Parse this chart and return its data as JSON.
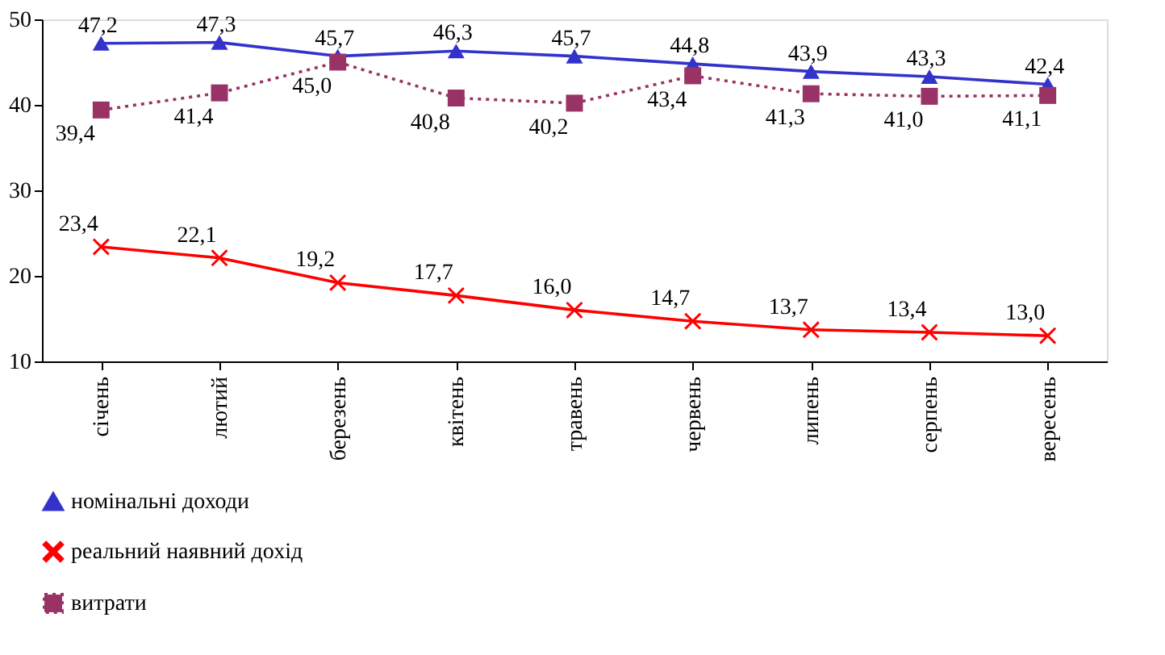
{
  "chart_data": {
    "type": "line",
    "categories": [
      "січень",
      "лютий",
      "березень",
      "квітень",
      "травень",
      "червень",
      "липень",
      "серпень",
      "вересень"
    ],
    "ylim": [
      10,
      50
    ],
    "yticks": [
      10,
      20,
      30,
      40,
      50
    ],
    "grid": false,
    "legend": "bottom",
    "series": [
      {
        "name": "номінальні доходи",
        "color": "#3333cc",
        "marker": "triangle",
        "line_style": "solid",
        "values": [
          47.2,
          47.3,
          45.7,
          46.3,
          45.7,
          44.8,
          43.9,
          43.3,
          42.4
        ],
        "value_labels": [
          "47,2",
          "47,3",
          "45,7",
          "46,3",
          "45,7",
          "44,8",
          "43,9",
          "43,3",
          "42,4"
        ]
      },
      {
        "name": "реальний наявний дохід",
        "color": "#ff0000",
        "marker": "cross",
        "line_style": "solid",
        "values": [
          23.4,
          22.1,
          19.2,
          17.7,
          16.0,
          14.7,
          13.7,
          13.4,
          13.0
        ],
        "value_labels": [
          "23,4",
          "22,1",
          "19,2",
          "17,7",
          "16,0",
          "14,7",
          "13,7",
          "13,4",
          "13,0"
        ]
      },
      {
        "name": "витрати",
        "color": "#993366",
        "marker": "square",
        "line_style": "dotted",
        "values": [
          39.4,
          41.4,
          45.0,
          40.8,
          40.2,
          43.4,
          41.3,
          41.0,
          41.1
        ],
        "value_labels": [
          "39,4",
          "41,4",
          "45,0",
          "40,8",
          "40,2",
          "43,4",
          "41,3",
          "41,0",
          "41,1"
        ]
      }
    ]
  }
}
